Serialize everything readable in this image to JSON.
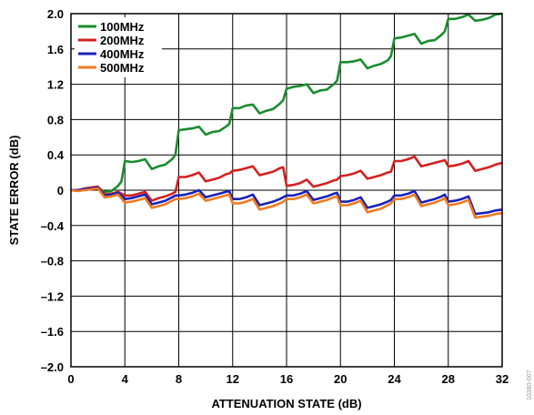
{
  "chart_data": {
    "type": "line",
    "title": "",
    "xlabel": "ATTENUATION STATE (dB)",
    "ylabel": "STATE ERROR (dB)",
    "xlim": [
      0,
      32
    ],
    "ylim": [
      -2.0,
      2.0
    ],
    "xticks": [
      0,
      4,
      8,
      12,
      16,
      20,
      24,
      28,
      32
    ],
    "yticks": [
      2.0,
      1.6,
      1.2,
      0.8,
      0.4,
      0,
      -0.4,
      -0.8,
      -1.2,
      -1.6,
      -2.0
    ],
    "xtick_labels": [
      "0",
      "4",
      "8",
      "12",
      "16",
      "20",
      "24",
      "28",
      "32"
    ],
    "ytick_labels": [
      "2.0",
      "1.6",
      "1.2",
      "0.8",
      "0.4",
      "0",
      "–0.4",
      "–0.8",
      "–1.2",
      "–1.6",
      "–2.0"
    ],
    "grid": true,
    "legend_position": "top-left",
    "figure_code": "10380-007",
    "series": [
      {
        "name": "100MHz",
        "color": "#1a8c2e",
        "points": [
          [
            0,
            0
          ],
          [
            0.5,
            0
          ],
          [
            1,
            0.01
          ],
          [
            1.5,
            0.02
          ],
          [
            2,
            0.03
          ],
          [
            2.5,
            -0.02
          ],
          [
            3,
            -0.01
          ],
          [
            3.5,
            0.05
          ],
          [
            3.75,
            0.1
          ],
          [
            4,
            0.33
          ],
          [
            4.5,
            0.32
          ],
          [
            5,
            0.33
          ],
          [
            5.5,
            0.35
          ],
          [
            6,
            0.24
          ],
          [
            6.5,
            0.27
          ],
          [
            7,
            0.29
          ],
          [
            7.5,
            0.35
          ],
          [
            7.75,
            0.4
          ],
          [
            8,
            0.68
          ],
          [
            8.5,
            0.69
          ],
          [
            9,
            0.7
          ],
          [
            9.5,
            0.72
          ],
          [
            10,
            0.63
          ],
          [
            10.5,
            0.66
          ],
          [
            11,
            0.67
          ],
          [
            11.5,
            0.72
          ],
          [
            11.75,
            0.75
          ],
          [
            12,
            0.93
          ],
          [
            12.5,
            0.93
          ],
          [
            13,
            0.96
          ],
          [
            13.5,
            0.97
          ],
          [
            14,
            0.87
          ],
          [
            14.5,
            0.9
          ],
          [
            15,
            0.92
          ],
          [
            15.5,
            0.98
          ],
          [
            15.75,
            1.02
          ],
          [
            16,
            1.15
          ],
          [
            16.5,
            1.17
          ],
          [
            17,
            1.18
          ],
          [
            17.5,
            1.2
          ],
          [
            18,
            1.1
          ],
          [
            18.5,
            1.13
          ],
          [
            19,
            1.14
          ],
          [
            19.5,
            1.2
          ],
          [
            19.75,
            1.24
          ],
          [
            20,
            1.45
          ],
          [
            20.5,
            1.45
          ],
          [
            21,
            1.46
          ],
          [
            21.5,
            1.48
          ],
          [
            22,
            1.38
          ],
          [
            22.5,
            1.41
          ],
          [
            23,
            1.43
          ],
          [
            23.5,
            1.47
          ],
          [
            23.75,
            1.52
          ],
          [
            24,
            1.72
          ],
          [
            24.5,
            1.73
          ],
          [
            25,
            1.75
          ],
          [
            25.5,
            1.77
          ],
          [
            26,
            1.66
          ],
          [
            26.5,
            1.69
          ],
          [
            27,
            1.7
          ],
          [
            27.5,
            1.76
          ],
          [
            27.75,
            1.8
          ],
          [
            28,
            1.94
          ],
          [
            28.5,
            1.94
          ],
          [
            29,
            1.96
          ],
          [
            29.5,
            1.99
          ],
          [
            30,
            1.92
          ],
          [
            30.5,
            1.93
          ],
          [
            31,
            1.95
          ],
          [
            31.5,
            1.99
          ],
          [
            32,
            2.0
          ]
        ]
      },
      {
        "name": "200MHz",
        "color": "#d42020",
        "points": [
          [
            0,
            0
          ],
          [
            0.5,
            0
          ],
          [
            1,
            0.02
          ],
          [
            1.5,
            0.03
          ],
          [
            2,
            0.04
          ],
          [
            2.5,
            -0.05
          ],
          [
            3,
            -0.04
          ],
          [
            3.5,
            -0.02
          ],
          [
            4,
            -0.06
          ],
          [
            4.5,
            -0.06
          ],
          [
            5,
            -0.04
          ],
          [
            5.5,
            -0.02
          ],
          [
            6,
            -0.12
          ],
          [
            6.5,
            -0.09
          ],
          [
            7,
            -0.07
          ],
          [
            7.5,
            -0.04
          ],
          [
            7.75,
            -0.02
          ],
          [
            8,
            0.15
          ],
          [
            8.5,
            0.15
          ],
          [
            9,
            0.17
          ],
          [
            9.5,
            0.2
          ],
          [
            10,
            0.1
          ],
          [
            10.5,
            0.12
          ],
          [
            11,
            0.14
          ],
          [
            11.5,
            0.18
          ],
          [
            11.75,
            0.19
          ],
          [
            12,
            0.22
          ],
          [
            12.5,
            0.23
          ],
          [
            13,
            0.25
          ],
          [
            13.5,
            0.27
          ],
          [
            14,
            0.17
          ],
          [
            14.5,
            0.19
          ],
          [
            15,
            0.21
          ],
          [
            15.5,
            0.25
          ],
          [
            15.75,
            0.26
          ],
          [
            16,
            0.05
          ],
          [
            16.5,
            0.06
          ],
          [
            17,
            0.08
          ],
          [
            17.5,
            0.12
          ],
          [
            18,
            0.04
          ],
          [
            18.5,
            0.06
          ],
          [
            19,
            0.08
          ],
          [
            19.5,
            0.11
          ],
          [
            19.75,
            0.12
          ],
          [
            20,
            0.16
          ],
          [
            20.5,
            0.17
          ],
          [
            21,
            0.19
          ],
          [
            21.5,
            0.22
          ],
          [
            22,
            0.13
          ],
          [
            22.5,
            0.15
          ],
          [
            23,
            0.17
          ],
          [
            23.5,
            0.2
          ],
          [
            23.75,
            0.21
          ],
          [
            24,
            0.33
          ],
          [
            24.5,
            0.33
          ],
          [
            25,
            0.35
          ],
          [
            25.5,
            0.38
          ],
          [
            26,
            0.27
          ],
          [
            26.5,
            0.29
          ],
          [
            27,
            0.31
          ],
          [
            27.5,
            0.33
          ],
          [
            27.75,
            0.34
          ],
          [
            28,
            0.27
          ],
          [
            28.5,
            0.28
          ],
          [
            29,
            0.3
          ],
          [
            29.5,
            0.33
          ],
          [
            30,
            0.22
          ],
          [
            30.5,
            0.24
          ],
          [
            31,
            0.26
          ],
          [
            31.5,
            0.29
          ],
          [
            32,
            0.31
          ]
        ]
      },
      {
        "name": "400MHz",
        "color": "#1a22b8",
        "points": [
          [
            0,
            0
          ],
          [
            0.5,
            0
          ],
          [
            1,
            0.01
          ],
          [
            1.5,
            0.02
          ],
          [
            2,
            0.03
          ],
          [
            2.5,
            -0.06
          ],
          [
            3,
            -0.05
          ],
          [
            3.5,
            -0.03
          ],
          [
            4,
            -0.1
          ],
          [
            4.5,
            -0.09
          ],
          [
            5,
            -0.07
          ],
          [
            5.5,
            -0.05
          ],
          [
            6,
            -0.16
          ],
          [
            6.5,
            -0.14
          ],
          [
            7,
            -0.12
          ],
          [
            7.5,
            -0.08
          ],
          [
            7.75,
            -0.06
          ],
          [
            8,
            -0.06
          ],
          [
            8.5,
            -0.05
          ],
          [
            9,
            -0.03
          ],
          [
            9.5,
            0
          ],
          [
            10,
            -0.08
          ],
          [
            10.5,
            -0.06
          ],
          [
            11,
            -0.04
          ],
          [
            11.5,
            -0.02
          ],
          [
            11.75,
            -0.01
          ],
          [
            12,
            -0.1
          ],
          [
            12.5,
            -0.1
          ],
          [
            13,
            -0.08
          ],
          [
            13.5,
            -0.05
          ],
          [
            14,
            -0.17
          ],
          [
            14.5,
            -0.15
          ],
          [
            15,
            -0.13
          ],
          [
            15.5,
            -0.1
          ],
          [
            15.75,
            -0.08
          ],
          [
            16,
            -0.06
          ],
          [
            16.5,
            -0.06
          ],
          [
            17,
            -0.04
          ],
          [
            17.5,
            -0.01
          ],
          [
            18,
            -0.11
          ],
          [
            18.5,
            -0.09
          ],
          [
            19,
            -0.07
          ],
          [
            19.5,
            -0.04
          ],
          [
            19.75,
            -0.03
          ],
          [
            20,
            -0.13
          ],
          [
            20.5,
            -0.13
          ],
          [
            21,
            -0.11
          ],
          [
            21.5,
            -0.08
          ],
          [
            22,
            -0.2
          ],
          [
            22.5,
            -0.18
          ],
          [
            23,
            -0.16
          ],
          [
            23.5,
            -0.13
          ],
          [
            23.75,
            -0.11
          ],
          [
            24,
            -0.06
          ],
          [
            24.5,
            -0.06
          ],
          [
            25,
            -0.04
          ],
          [
            25.5,
            -0.01
          ],
          [
            26,
            -0.14
          ],
          [
            26.5,
            -0.12
          ],
          [
            27,
            -0.1
          ],
          [
            27.5,
            -0.07
          ],
          [
            27.75,
            -0.05
          ],
          [
            28,
            -0.13
          ],
          [
            28.5,
            -0.12
          ],
          [
            29,
            -0.1
          ],
          [
            29.5,
            -0.07
          ],
          [
            30,
            -0.27
          ],
          [
            30.5,
            -0.26
          ],
          [
            31,
            -0.25
          ],
          [
            31.5,
            -0.23
          ],
          [
            32,
            -0.22
          ]
        ]
      },
      {
        "name": "500MHz",
        "color": "#f07a20",
        "points": [
          [
            0,
            0
          ],
          [
            0.5,
            -0.01
          ],
          [
            1,
            0
          ],
          [
            1.5,
            0.01
          ],
          [
            2,
            0.02
          ],
          [
            2.5,
            -0.08
          ],
          [
            3,
            -0.07
          ],
          [
            3.5,
            -0.05
          ],
          [
            4,
            -0.14
          ],
          [
            4.5,
            -0.13
          ],
          [
            5,
            -0.11
          ],
          [
            5.5,
            -0.09
          ],
          [
            6,
            -0.2
          ],
          [
            6.5,
            -0.18
          ],
          [
            7,
            -0.16
          ],
          [
            7.5,
            -0.12
          ],
          [
            7.75,
            -0.1
          ],
          [
            8,
            -0.1
          ],
          [
            8.5,
            -0.09
          ],
          [
            9,
            -0.07
          ],
          [
            9.5,
            -0.04
          ],
          [
            10,
            -0.12
          ],
          [
            10.5,
            -0.1
          ],
          [
            11,
            -0.08
          ],
          [
            11.5,
            -0.06
          ],
          [
            11.75,
            -0.05
          ],
          [
            12,
            -0.15
          ],
          [
            12.5,
            -0.15
          ],
          [
            13,
            -0.13
          ],
          [
            13.5,
            -0.1
          ],
          [
            14,
            -0.22
          ],
          [
            14.5,
            -0.2
          ],
          [
            15,
            -0.18
          ],
          [
            15.5,
            -0.15
          ],
          [
            15.75,
            -0.13
          ],
          [
            16,
            -0.1
          ],
          [
            16.5,
            -0.1
          ],
          [
            17,
            -0.08
          ],
          [
            17.5,
            -0.05
          ],
          [
            18,
            -0.15
          ],
          [
            18.5,
            -0.13
          ],
          [
            19,
            -0.11
          ],
          [
            19.5,
            -0.08
          ],
          [
            19.75,
            -0.07
          ],
          [
            20,
            -0.17
          ],
          [
            20.5,
            -0.17
          ],
          [
            21,
            -0.15
          ],
          [
            21.5,
            -0.12
          ],
          [
            22,
            -0.25
          ],
          [
            22.5,
            -0.23
          ],
          [
            23,
            -0.21
          ],
          [
            23.5,
            -0.17
          ],
          [
            23.75,
            -0.15
          ],
          [
            24,
            -0.1
          ],
          [
            24.5,
            -0.1
          ],
          [
            25,
            -0.08
          ],
          [
            25.5,
            -0.05
          ],
          [
            26,
            -0.18
          ],
          [
            26.5,
            -0.16
          ],
          [
            27,
            -0.14
          ],
          [
            27.5,
            -0.11
          ],
          [
            27.75,
            -0.09
          ],
          [
            28,
            -0.17
          ],
          [
            28.5,
            -0.16
          ],
          [
            29,
            -0.14
          ],
          [
            29.5,
            -0.11
          ],
          [
            30,
            -0.31
          ],
          [
            30.5,
            -0.3
          ],
          [
            31,
            -0.29
          ],
          [
            31.5,
            -0.27
          ],
          [
            32,
            -0.26
          ]
        ]
      }
    ]
  }
}
